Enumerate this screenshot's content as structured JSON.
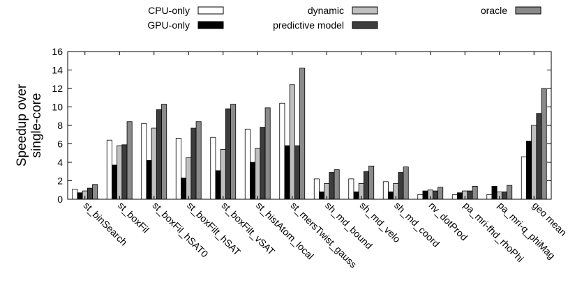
{
  "chart_data": {
    "type": "bar",
    "ylabel": [
      "Speedup over",
      "single-core"
    ],
    "ylim": [
      0,
      16
    ],
    "yticks": [
      "0",
      "2",
      "4",
      "6",
      "8",
      "10",
      "12",
      "14",
      "16"
    ],
    "grid": false,
    "legend_position": "top",
    "categories": [
      "st_binSearch",
      "st_boxFil",
      "st_boxFil_hSAT0",
      "st_boxFilt_hSAT",
      "st_boxFilt_vSAT",
      "st_histAtom_local",
      "st_mersTwist_gauss",
      "sh_md_bound",
      "sh_md_velo",
      "sh_md_coord",
      "nv_dotProd",
      "pa_mri-fhd_rhoPhi",
      "pa_mri-q_phiMag",
      "geo mean"
    ],
    "series": [
      {
        "name": "CPU-only",
        "color": "#ffffff",
        "values": [
          1.1,
          6.4,
          8.2,
          6.6,
          6.7,
          7.6,
          10.4,
          2.2,
          2.2,
          1.9,
          0.5,
          0.5,
          0.5,
          4.6
        ]
      },
      {
        "name": "GPU-only",
        "color": "#000000",
        "values": [
          0.7,
          3.7,
          4.2,
          2.3,
          3.1,
          4.0,
          5.8,
          0.8,
          0.8,
          0.8,
          0.9,
          0.7,
          1.4,
          6.3
        ]
      },
      {
        "name": "dynamic",
        "color": "#bfbfbf",
        "values": [
          0.9,
          5.8,
          7.7,
          4.5,
          5.4,
          5.5,
          12.4,
          1.7,
          1.7,
          1.7,
          1.0,
          0.9,
          0.8,
          8.0
        ]
      },
      {
        "name": "predictive model",
        "color": "#3d3d3d",
        "values": [
          1.2,
          5.9,
          9.7,
          7.7,
          9.8,
          7.8,
          5.8,
          2.9,
          3.0,
          2.9,
          0.9,
          0.9,
          0.8,
          9.3
        ]
      },
      {
        "name": "oracle",
        "color": "#8a8a8a",
        "values": [
          1.6,
          8.4,
          10.3,
          8.4,
          10.3,
          9.9,
          14.2,
          3.2,
          3.6,
          3.5,
          1.3,
          1.4,
          1.5,
          12.0
        ]
      }
    ]
  }
}
